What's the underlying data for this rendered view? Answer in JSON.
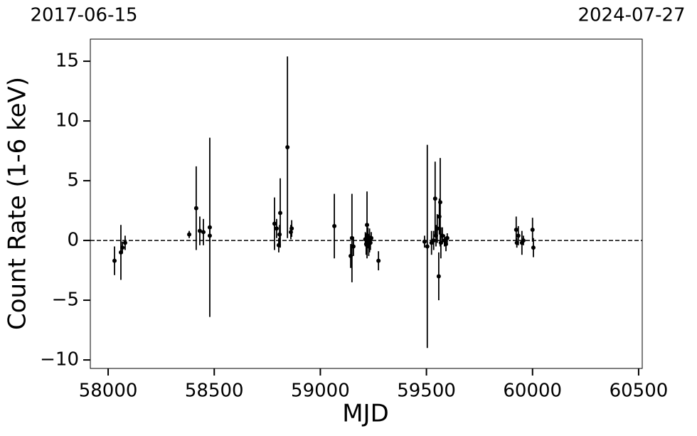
{
  "chart_data": {
    "type": "errorbar",
    "top_labels": [
      "2017-06-15",
      "2024-07-27"
    ],
    "xlabel": "MJD",
    "ylabel": "Count Rate (1-6 keV)",
    "color": "#000000",
    "hline": 0,
    "x": [
      58030,
      58060,
      58067,
      58080,
      58382,
      58415,
      58432,
      58449,
      58479,
      58479,
      58784,
      58794,
      58804,
      58808,
      58811,
      58845,
      58861,
      58865,
      59066,
      59143,
      59149,
      59156,
      59212,
      59216,
      59220,
      59224,
      59228,
      59232,
      59236,
      59240,
      59274,
      59491,
      59504,
      59524,
      59534,
      59541,
      59545,
      59551,
      59558,
      59561,
      59565,
      59568,
      59575,
      59585,
      59592,
      59598,
      59923,
      59926,
      59933,
      59950,
      59957,
      60000,
      60004
    ],
    "y": [
      -1.7,
      -1.0,
      -0.6,
      -0.2,
      0.5,
      2.7,
      0.8,
      0.7,
      1.1,
      0.4,
      1.4,
      1.0,
      -0.4,
      0.5,
      2.3,
      7.8,
      0.7,
      1.0,
      1.2,
      -1.3,
      0.2,
      -0.5,
      0.1,
      -0.3,
      1.3,
      0.4,
      -0.5,
      0.0,
      -0.2,
      0.2,
      -1.7,
      -0.1,
      -0.5,
      -0.2,
      0.0,
      3.5,
      0.4,
      1.0,
      -3.0,
      2.0,
      3.2,
      -0.2,
      0.4,
      0.0,
      -0.3,
      0.2,
      0.9,
      -0.2,
      0.4,
      -0.2,
      0.0,
      0.9,
      -0.6
    ],
    "yerr": [
      1.2,
      2.3,
      0.5,
      0.6,
      0.3,
      3.5,
      1.2,
      1.1,
      7.5,
      0.5,
      2.2,
      0.8,
      0.6,
      0.8,
      2.9,
      7.6,
      0.6,
      0.7,
      2.7,
      1.0,
      3.7,
      0.8,
      0.6,
      0.9,
      2.8,
      0.7,
      0.8,
      1.0,
      0.6,
      0.5,
      0.8,
      0.5,
      8.5,
      1.0,
      0.8,
      3.1,
      0.9,
      1.2,
      2.0,
      1.5,
      3.7,
      1.3,
      0.7,
      0.5,
      0.6,
      0.4,
      1.1,
      0.4,
      0.8,
      1.0,
      0.4,
      1.0,
      0.8
    ],
    "xlim": [
      57916,
      60517
    ],
    "ylim": [
      -10.71,
      16.85
    ],
    "xticks": [
      58000,
      58500,
      59000,
      59500,
      60000,
      60500
    ],
    "yticks": [
      {
        "value": -10,
        "label": "−10"
      },
      {
        "value": -5,
        "label": "−5"
      },
      0,
      5,
      10,
      15
    ]
  }
}
